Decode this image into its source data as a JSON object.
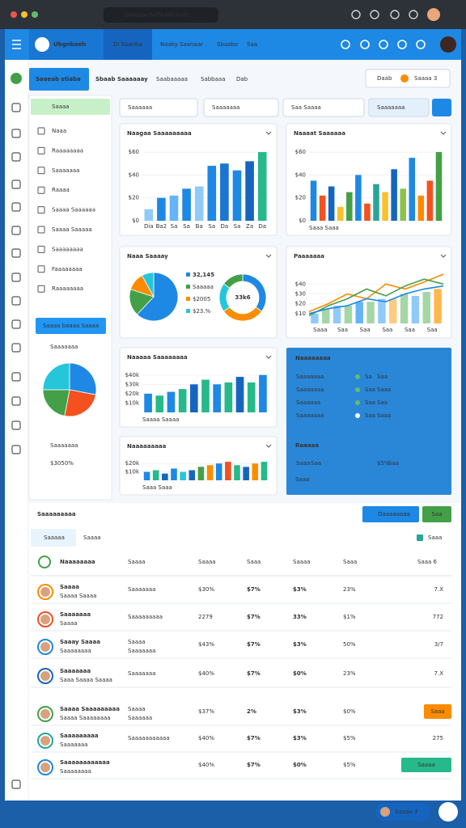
{
  "browser": {
    "url": "Gbepsachalta.blb.bam"
  },
  "header": {
    "brand": "Ubgnbaeh",
    "nav": [
      "Di Sbanba",
      "Naaky Saanaar",
      "Sbaabo",
      "Saa"
    ]
  },
  "tabs": [
    "Saaeab stiaba",
    "Sbaab Saaaaaay",
    "Saabaaaaa",
    "Sabbaaa",
    "Dab"
  ],
  "toolbar": [
    "Daab",
    "Saaaa 3"
  ],
  "sidebar": {
    "heading": "Saaaa",
    "items": [
      "Naaa",
      "Raaaaaaaa",
      "Saaaaaaa",
      "Raaaa",
      "Saaaa Saaaaaa",
      "Saaaa Saaaaa",
      "Saaaaaaaa",
      "Faaaaaaaa",
      "Raaaaaaaa"
    ],
    "button": "Saaaa baaaa Saaaa",
    "pie": {
      "title": "Saaaaaaa",
      "values": [
        28,
        25,
        22,
        25
      ],
      "colors": [
        "#1e88e5",
        "#f4511e",
        "#43a047",
        "#26c6da"
      ]
    },
    "stat": {
      "label": "Saaaaaaa",
      "value": "$3050%"
    }
  },
  "filters": [
    "Saaaaaa",
    "Saaaaaaa",
    "Saa Saaaa",
    "Saaaaaaa"
  ],
  "charts": [
    {
      "type": "bar",
      "title": "Naagaa Saaaaaaaaa",
      "ylim": [
        0,
        65
      ],
      "yticks": [
        {
          "value": 0,
          "label": "$0"
        },
        {
          "value": 20,
          "label": "$20"
        },
        {
          "value": 40,
          "label": "$40"
        },
        {
          "value": 60,
          "label": "$60"
        }
      ],
      "categories": [
        "Dia",
        "Ba2",
        "Sa",
        "Sa",
        "Ba",
        "Sa",
        "Da",
        "Sa",
        "Za",
        "Da"
      ],
      "values": [
        10,
        20,
        22,
        28,
        30,
        48,
        50,
        44,
        52,
        60
      ],
      "colors": [
        "#90caf9",
        "#1e88e5",
        "#64b5f6",
        "#1e88e5",
        "#90caf9",
        "#1e88e5",
        "#1976d2",
        "#1e88e5",
        "#1565c0",
        "#26b98a"
      ]
    },
    {
      "type": "bar",
      "title": "Naaaat Saaaaaa",
      "ylim": [
        0,
        65
      ],
      "yticks": [
        {
          "value": 0,
          "label": "$0"
        },
        {
          "value": 20,
          "label": "$20"
        },
        {
          "value": 40,
          "label": "$40"
        },
        {
          "value": 60,
          "label": "$60"
        }
      ],
      "values": [
        35,
        22,
        30,
        12,
        25,
        40,
        15,
        32,
        25,
        45,
        28,
        55,
        22,
        35,
        60
      ],
      "colors": [
        "#1e88e5",
        "#f4511e",
        "#1565c0",
        "#fbc02d",
        "#43a047",
        "#1e88e5",
        "#f4511e",
        "#26a69a",
        "#fbc02d",
        "#1565c0",
        "#8bc34a",
        "#1e88e5",
        "#fb8c00",
        "#f4511e",
        "#43a047"
      ],
      "footer": "Saaa Saaa"
    },
    {
      "type": "pie",
      "title": "Naaa Saaaay",
      "values": [
        62,
        18,
        12,
        8
      ],
      "colors": [
        "#1e88e5",
        "#43a047",
        "#fb8c00",
        "#26c6da"
      ],
      "legend": [
        "32,145",
        "Saaaaa",
        "$2005",
        "$23.%"
      ],
      "donut": {
        "values": [
          35,
          30,
          20,
          15
        ],
        "colors": [
          "#1e88e5",
          "#fb8c00",
          "#26c6da",
          "#43a047"
        ],
        "center": "33k6"
      }
    },
    {
      "type": "combo",
      "title": "Paaaaaaa",
      "ylim": [
        0,
        55
      ],
      "yticks": [
        {
          "value": 10,
          "label": "$10"
        },
        {
          "value": 20,
          "label": "$20"
        },
        {
          "value": 30,
          "label": "$30"
        },
        {
          "value": 40,
          "label": "$40"
        }
      ],
      "values": [
        10,
        15,
        18,
        18,
        22,
        22,
        25,
        25,
        30,
        28,
        32,
        35
      ],
      "colors": [
        "#90caf9",
        "#a5d6a7",
        "#90caf9",
        "#a5d6a7",
        "#64b5f6",
        "#a5d6a7",
        "#90caf9",
        "#ffcc80",
        "#a5d6a7",
        "#90caf9",
        "#a5d6a7",
        "#ffb74d"
      ],
      "lines": [
        {
          "color": "#fb8c00",
          "values": [
            12,
            20,
            30,
            25,
            40,
            35,
            42,
            50
          ]
        },
        {
          "color": "#43a047",
          "values": [
            8,
            18,
            25,
            35,
            28,
            38,
            45,
            40
          ]
        },
        {
          "color": "#1e88e5",
          "values": [
            10,
            15,
            18,
            25,
            22,
            30,
            35,
            38
          ]
        }
      ],
      "x_labels": [
        "Saaa",
        "Saa",
        "Saa",
        "Saa",
        "Saa",
        "Saa"
      ]
    },
    {
      "type": "bar",
      "title": "Naaaaa Saaaaaaaa",
      "ylim": [
        0,
        45
      ],
      "yticks": [
        {
          "value": 10,
          "label": "$10k"
        },
        {
          "value": 20,
          "label": "$20k"
        },
        {
          "value": 30,
          "label": "$30k"
        },
        {
          "value": 40,
          "label": "$40k"
        }
      ],
      "values": [
        20,
        18,
        22,
        25,
        30,
        35,
        30,
        32,
        38,
        32,
        40
      ],
      "colors": [
        "#1e88e5",
        "#26b98a",
        "#1e88e5",
        "#26b98a",
        "#1565c0",
        "#26b98a",
        "#1e88e5",
        "#26b98a",
        "#1565c0",
        "#26b98a",
        "#1e88e5"
      ],
      "footer": "Saaaa Saaaa"
    },
    {
      "type": "bar",
      "title": "Naaaaaaaaa",
      "ylim": [
        0,
        25
      ],
      "yticks": [
        {
          "value": 10,
          "label": "$10k"
        },
        {
          "value": 20,
          "label": "$20k"
        }
      ],
      "values": [
        10,
        12,
        8,
        14,
        10,
        12,
        16,
        18,
        20,
        22,
        18,
        16,
        20,
        22
      ],
      "colors": [
        "#1e88e5",
        "#26b98a",
        "#1565c0",
        "#1e88e5",
        "#26c6da",
        "#1565c0",
        "#43a047",
        "#fb8c00",
        "#1e88e5",
        "#f4511e",
        "#26b98a",
        "#1565c0",
        "#fb8c00",
        "#26b98a"
      ],
      "footer": "Saaa Saaa"
    }
  ],
  "blue_panel": {
    "title": "Naaaaaaaa",
    "rows": [
      {
        "label": "Saaaaaaa",
        "a": "Sa",
        "b": "Saa"
      },
      {
        "label": "Saaaaaaa",
        "a": "Saa",
        "b": "Saaa"
      },
      {
        "label": "Saaaaaa",
        "a": "Saa",
        "b": "Saa"
      },
      {
        "label": "Saaaaaaa",
        "a": "Saa",
        "b": "Saaa"
      }
    ],
    "subtitle": "Raaaaa",
    "sub_row": [
      "Saaa",
      "Saa",
      "$5%",
      "Saa"
    ],
    "footer": "Saaa"
  },
  "table": {
    "title": "Saaaaaaaaa",
    "buttons": [
      "Daaaaaaaa",
      "Saa"
    ],
    "tabs": [
      "Saaaaa",
      "Saaaa"
    ],
    "filter": "Saaa",
    "columns": [
      "Naaaaaaaa",
      "Saaaa",
      "Saaaa",
      "Saaa",
      "Saaaa",
      "Saaa",
      "Saaa 6"
    ],
    "rows": [
      {
        "name": "Saaaa",
        "sub": "Saaaa Saaaa",
        "link": "Saaaaaaa",
        "cells": [
          "$30%",
          "$7%",
          "$3%",
          "23%"
        ],
        "end": "7.X"
      },
      {
        "name": "Saaaaaaa",
        "sub": "Saaaa",
        "link": "Saaaaaaaaa",
        "cells": [
          "2279",
          "$7%",
          "33%",
          "$1%"
        ],
        "end": "772"
      },
      {
        "name": "Saaay Saaaa",
        "sub": "Saaaaaaaa",
        "link": "Saaaa",
        "note": "Saaaaaaa",
        "cells": [
          "$43%",
          "$7%",
          "$3%",
          "50%"
        ],
        "end": "3/7"
      },
      {
        "name": "Saaaaaaa",
        "sub": "Saaa Saaaa Saaaa",
        "link": "Saaaaaaa",
        "cells": [
          "$40%",
          "$7%",
          "$0%",
          "23%"
        ],
        "end": "7.X"
      },
      {
        "name": "Saaaa Saaaaaaaaa",
        "sub": "Saaaa Saaaaaaaa",
        "link": "Saaaa",
        "note": "Saaaaaa",
        "cells": [
          "$37%",
          "2%",
          "$3%",
          "$0%"
        ],
        "end": "Saaa",
        "end_style": "orange"
      },
      {
        "name": "Saaaaaaaaa",
        "sub": "Saaaaaaa",
        "link": "Saaaaaaaaaaa",
        "cells": [
          "$40%",
          "$7%",
          "$3%",
          "$5%"
        ],
        "end": "275"
      },
      {
        "name": "Saaaaaaaaaaaa",
        "sub": "Saaaaaaaa",
        "cells": [
          "$40%",
          "$7%",
          "$0%",
          "$5%"
        ],
        "end": "Saaaa",
        "end_style": "teal"
      }
    ]
  },
  "footer_pill": "Saaaa 3"
}
